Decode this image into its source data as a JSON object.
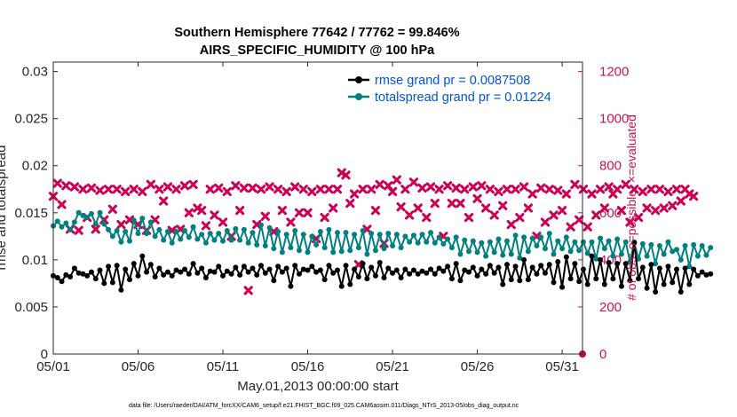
{
  "title_line1": "Southern Hemisphere 77642 / 77762 = 99.846%",
  "title_line2": "AIRS_SPECIFIC_HUMIDITY @ 100 hPa",
  "xlabel": "May.01,2013 00:00:00 start",
  "ylabel_left": "rmse and totalspread",
  "ylabel_right": "# of obs: o=possible; ×=evaluated",
  "footer": "data file: /Users/raeder/DAI/ATM_forcXX/CAM6_setup/f.e21.FHIST_BGC.f09_025.CAM6assim.011/Diags_NTrS_2013-05/obs_diag_output.nc",
  "colors": {
    "rmse": "#000000",
    "spread": "#008080",
    "obs": "#cc0055",
    "legend_text": "#0055d4"
  },
  "chart_data": {
    "type": "line",
    "title": "Southern Hemisphere 77642 / 77762 = 99.846%",
    "subtitle": "AIRS_SPECIFIC_HUMIDITY @ 100 hPa",
    "xlim": [
      1,
      32.2
    ],
    "ylim": [
      0,
      0.031
    ],
    "ylim_right": [
      0,
      1240
    ],
    "x_ticks": [
      {
        "label": "05/01",
        "value": 1
      },
      {
        "label": "05/06",
        "value": 6
      },
      {
        "label": "05/11",
        "value": 11
      },
      {
        "label": "05/16",
        "value": 16
      },
      {
        "label": "05/21",
        "value": 21
      },
      {
        "label": "05/26",
        "value": 26
      },
      {
        "label": "05/31",
        "value": 31
      }
    ],
    "y_ticks": [
      {
        "label": "0",
        "value": 0
      },
      {
        "label": "0.005",
        "value": 0.005
      },
      {
        "label": "0.01",
        "value": 0.01
      },
      {
        "label": "0.015",
        "value": 0.015
      },
      {
        "label": "0.02",
        "value": 0.02
      },
      {
        "label": "0.025",
        "value": 0.025
      },
      {
        "label": "0.03",
        "value": 0.03
      }
    ],
    "y_right_ticks": [
      {
        "label": "0",
        "value": 0
      },
      {
        "label": "200",
        "value": 200
      },
      {
        "label": "400",
        "value": 400
      },
      {
        "label": "600",
        "value": 600
      },
      {
        "label": "800",
        "value": 800
      },
      {
        "label": "1000",
        "value": 1000
      },
      {
        "label": "1200",
        "value": 1200
      }
    ],
    "x_start": 1,
    "x_step": 0.25,
    "series": [
      {
        "name": "rmse",
        "legend": "rmse grand pr = 0.0087508",
        "values": [
          0.0083,
          0.0081,
          0.0077,
          0.0084,
          0.0082,
          0.0091,
          0.0086,
          0.0085,
          0.0083,
          0.0087,
          0.008,
          0.0089,
          0.0075,
          0.0093,
          0.0076,
          0.0094,
          0.0068,
          0.009,
          0.0079,
          0.0096,
          0.0083,
          0.0104,
          0.0087,
          0.0095,
          0.0082,
          0.0091,
          0.0084,
          0.0087,
          0.0083,
          0.0089,
          0.0087,
          0.009,
          0.0085,
          0.0096,
          0.0086,
          0.0091,
          0.0081,
          0.0088,
          0.0087,
          0.0093,
          0.0083,
          0.0088,
          0.0085,
          0.0092,
          0.0084,
          0.0093,
          0.0087,
          0.0091,
          0.0084,
          0.0094,
          0.0086,
          0.009,
          0.0078,
          0.0093,
          0.0087,
          0.0091,
          0.0072,
          0.0094,
          0.0085,
          0.009,
          0.0089,
          0.0093,
          0.0087,
          0.0089,
          0.0079,
          0.0094,
          0.0086,
          0.0089,
          0.0072,
          0.0094,
          0.0074,
          0.009,
          0.0082,
          0.0096,
          0.008,
          0.0092,
          0.0083,
          0.0097,
          0.0081,
          0.0091,
          0.0086,
          0.0089,
          0.0081,
          0.009,
          0.0085,
          0.0089,
          0.0085,
          0.0088,
          0.0086,
          0.009,
          0.0085,
          0.0091,
          0.0088,
          0.0093,
          0.008,
          0.0096,
          0.0078,
          0.0089,
          0.0087,
          0.0092,
          0.0083,
          0.009,
          0.0085,
          0.0094,
          0.0086,
          0.0092,
          0.0074,
          0.0095,
          0.0079,
          0.0093,
          0.0078,
          0.01,
          0.0079,
          0.0092,
          0.0085,
          0.0094,
          0.0086,
          0.0095,
          0.0076,
          0.0098,
          0.0071,
          0.0103,
          0.008,
          0.0096,
          0.0077,
          0.009,
          0.0074,
          0.0104,
          0.008,
          0.01,
          0.0074,
          0.0097,
          0.008,
          0.0096,
          0.0072,
          0.0096,
          0.0078,
          0.0118,
          0.008,
          0.0092,
          0.007,
          0.0095,
          0.0066,
          0.0091,
          0.0074,
          0.0093,
          0.0076,
          0.009,
          0.0066,
          0.0091,
          0.0074,
          0.009,
          0.0083,
          0.0087,
          0.0084,
          0.0085
        ]
      },
      {
        "name": "totalspread",
        "legend": "totalspread grand pr = 0.01224",
        "values": [
          0.0136,
          0.0141,
          0.0135,
          0.0139,
          0.0132,
          0.014,
          0.015,
          0.0147,
          0.0145,
          0.0149,
          0.0138,
          0.015,
          0.0138,
          0.0132,
          0.0125,
          0.0131,
          0.0119,
          0.013,
          0.012,
          0.0142,
          0.0128,
          0.0144,
          0.0128,
          0.014,
          0.0125,
          0.0132,
          0.0121,
          0.013,
          0.0118,
          0.013,
          0.0122,
          0.0131,
          0.0124,
          0.0135,
          0.0122,
          0.0127,
          0.0118,
          0.0128,
          0.0121,
          0.0128,
          0.012,
          0.0131,
          0.0121,
          0.0133,
          0.0121,
          0.0132,
          0.0118,
          0.0129,
          0.0116,
          0.0137,
          0.0115,
          0.0134,
          0.0112,
          0.013,
          0.0108,
          0.0127,
          0.0113,
          0.0131,
          0.011,
          0.0127,
          0.0108,
          0.0125,
          0.0116,
          0.013,
          0.0113,
          0.0132,
          0.0108,
          0.0129,
          0.0109,
          0.0129,
          0.011,
          0.0127,
          0.0113,
          0.0131,
          0.0106,
          0.0128,
          0.011,
          0.0127,
          0.0112,
          0.0128,
          0.0115,
          0.0127,
          0.0113,
          0.0125,
          0.0119,
          0.0126,
          0.0118,
          0.0127,
          0.0119,
          0.0129,
          0.0118,
          0.0124,
          0.0117,
          0.0122,
          0.0113,
          0.0124,
          0.0106,
          0.0121,
          0.0109,
          0.012,
          0.0108,
          0.0118,
          0.0104,
          0.0119,
          0.0108,
          0.0122,
          0.0105,
          0.012,
          0.0106,
          0.0126,
          0.0102,
          0.0124,
          0.0109,
          0.0123,
          0.0115,
          0.0124,
          0.0112,
          0.0128,
          0.0106,
          0.012,
          0.0112,
          0.0124,
          0.0109,
          0.0119,
          0.011,
          0.0119,
          0.0107,
          0.0119,
          0.0101,
          0.0123,
          0.0112,
          0.012,
          0.0104,
          0.0122,
          0.0106,
          0.0119,
          0.0098,
          0.0119,
          0.0101,
          0.0117,
          0.0104,
          0.0116,
          0.0096,
          0.0115,
          0.0106,
          0.0119,
          0.0109,
          0.0111,
          0.01,
          0.0115,
          0.0093,
          0.0116,
          0.0104,
          0.0115,
          0.0105,
          0.0113
        ]
      },
      {
        "name": "obs_evaluated",
        "axis": "right",
        "marker": "x",
        "values": [
          670,
          725,
          635,
          715,
          530,
          710,
          525,
          700,
          580,
          705,
          530,
          695,
          570,
          700,
          615,
          700,
          550,
          690,
          570,
          700,
          550,
          690,
          525,
          720,
          570,
          700,
          650,
          710,
          525,
          700,
          530,
          715,
          600,
          720,
          620,
          610,
          545,
          700,
          590,
          705,
          560,
          690,
          500,
          715,
          610,
          705,
          270,
          705,
          550,
          700,
          585,
          710,
          520,
          700,
          610,
          690,
          560,
          710,
          600,
          700,
          600,
          690,
          490,
          700,
          580,
          700,
          620,
          700,
          770,
          760,
          640,
          680,
          380,
          700,
          530,
          700,
          610,
          720,
          470,
          715,
          690,
          740,
          625,
          700,
          590,
          730,
          620,
          705,
          580,
          710,
          640,
          700,
          500,
          715,
          640,
          705,
          640,
          700,
          580,
          710,
          660,
          715,
          620,
          700,
          590,
          690,
          630,
          700,
          550,
          700,
          580,
          710,
          620,
          680,
          500,
          705,
          560,
          700,
          590,
          695,
          610,
          680,
          540,
          720,
          570,
          700,
          540,
          680,
          590,
          700,
          620,
          710,
          680,
          700,
          610,
          720,
          560,
          700,
          580,
          690,
          620,
          700,
          610,
          700,
          620,
          690,
          630,
          700,
          650,
          700,
          680,
          670
        ]
      },
      {
        "name": "obs_possible",
        "axis": "right",
        "marker": "o",
        "values": [
          0
        ]
      }
    ]
  }
}
